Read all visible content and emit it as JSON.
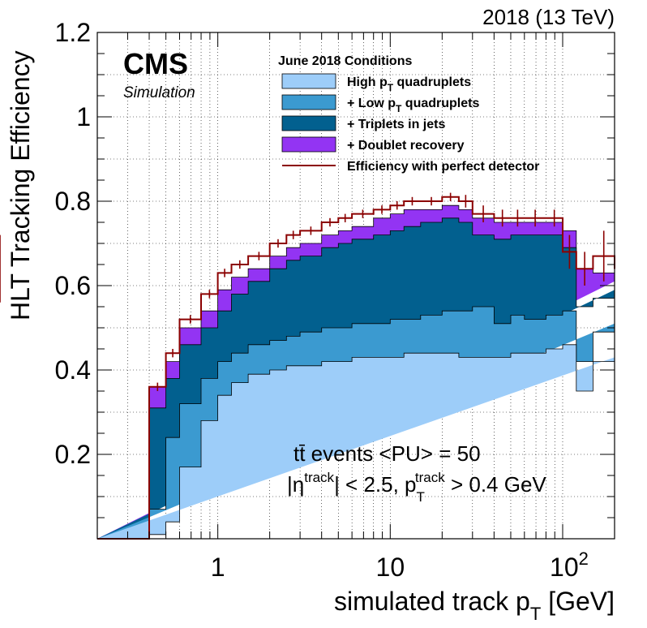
{
  "chart_data": {
    "type": "area",
    "title_right": "2018 (13 TeV)",
    "experiment": "CMS",
    "experiment_sub": "Simulation",
    "xlabel": {
      "main": "simulated track p",
      "sub": "T",
      "unit": " [GeV]"
    },
    "ylabel": "HLT Tracking Efficiency",
    "x_scale": "log",
    "xlim": [
      0.2,
      200
    ],
    "ylim": [
      0,
      1.2
    ],
    "grid": true,
    "legend_position": "top-center",
    "legend_header": "June 2018 Conditions",
    "x_ticks": [
      {
        "value": 1,
        "base": "1",
        "exp": ""
      },
      {
        "value": 10,
        "base": "10",
        "exp": ""
      },
      {
        "value": 100,
        "base": "10",
        "exp": "2"
      }
    ],
    "y_ticks": [
      {
        "value": 0.2,
        "label": "0.2"
      },
      {
        "value": 0.4,
        "label": "0.4"
      },
      {
        "value": 0.6,
        "label": "0.6"
      },
      {
        "value": 0.8,
        "label": "0.8"
      },
      {
        "value": 1.0,
        "label": "1"
      },
      {
        "value": 1.2,
        "label": "1.2"
      }
    ],
    "bin_edges": [
      0.2,
      0.3,
      0.4,
      0.5,
      0.6,
      0.8,
      1.0,
      1.2,
      1.5,
      2.0,
      2.5,
      3.0,
      4.0,
      5.0,
      6.0,
      8.0,
      10.0,
      12.0,
      15.0,
      20.0,
      25.0,
      30.0,
      40.0,
      50.0,
      60.0,
      80.0,
      100.0,
      120.0,
      150.0,
      200.0
    ],
    "series": [
      {
        "label": "High p",
        "label_sub": "T",
        "label_suffix": " quadruplets",
        "color": "#9dcdf9",
        "values": [
          0,
          0,
          0.01,
          0.04,
          0.17,
          0.28,
          0.34,
          0.37,
          0.39,
          0.4,
          0.41,
          0.41,
          0.42,
          0.42,
          0.43,
          0.43,
          0.43,
          0.44,
          0.44,
          0.44,
          0.43,
          0.43,
          0.43,
          0.44,
          0.44,
          0.45,
          0.46,
          0.35,
          0.42,
          0.43
        ]
      },
      {
        "label": "+ Low p",
        "label_sub": "T",
        "label_suffix": " quadruplets",
        "color": "#3b9ad0",
        "values": [
          0,
          0,
          0.07,
          0.24,
          0.32,
          0.38,
          0.42,
          0.44,
          0.46,
          0.47,
          0.48,
          0.49,
          0.5,
          0.5,
          0.51,
          0.51,
          0.52,
          0.52,
          0.53,
          0.54,
          0.54,
          0.55,
          0.51,
          0.53,
          0.52,
          0.53,
          0.54,
          0.42,
          0.49,
          0.51
        ]
      },
      {
        "label": "+ Triplets in jets",
        "label_sub": "",
        "label_suffix": "",
        "color": "#02608f",
        "values": [
          0,
          0,
          0.31,
          0.38,
          0.46,
          0.5,
          0.54,
          0.58,
          0.61,
          0.64,
          0.66,
          0.67,
          0.69,
          0.7,
          0.71,
          0.72,
          0.73,
          0.74,
          0.75,
          0.76,
          0.75,
          0.72,
          0.71,
          0.72,
          0.72,
          0.72,
          0.69,
          0.55,
          0.57,
          0.59
        ]
      },
      {
        "label": "+ Doublet recovery",
        "label_sub": "",
        "label_suffix": "",
        "color": "#9334f3",
        "values": [
          0,
          0,
          0.36,
          0.42,
          0.5,
          0.54,
          0.59,
          0.62,
          0.64,
          0.67,
          0.69,
          0.7,
          0.72,
          0.73,
          0.74,
          0.76,
          0.77,
          0.78,
          0.78,
          0.79,
          0.78,
          0.76,
          0.75,
          0.75,
          0.75,
          0.75,
          0.73,
          0.64,
          0.63,
          0.61
        ]
      }
    ],
    "perfect": {
      "label": "Efficiency with perfect detector",
      "color": "#8b0000",
      "values": [
        0,
        0,
        0.36,
        0.44,
        0.52,
        0.58,
        0.63,
        0.65,
        0.67,
        0.7,
        0.72,
        0.73,
        0.75,
        0.76,
        0.77,
        0.78,
        0.79,
        0.8,
        0.8,
        0.81,
        0.8,
        0.77,
        0.76,
        0.76,
        0.76,
        0.76,
        0.68,
        0.64,
        0.67,
        0.64
      ],
      "errors": [
        0,
        0,
        0.01,
        0.01,
        0.01,
        0.01,
        0.01,
        0.01,
        0.01,
        0.01,
        0.01,
        0.01,
        0.01,
        0.01,
        0.01,
        0.01,
        0.01,
        0.01,
        0.01,
        0.01,
        0.015,
        0.02,
        0.02,
        0.02,
        0.02,
        0.02,
        0.04,
        0.04,
        0.06,
        0.08
      ]
    },
    "annotations": {
      "line1": "tt̄ events <PU> = 50",
      "line2_a": "|η",
      "line2_a_sup": "track",
      "line2_b": "| < 2.5, p",
      "line2_b_sub": "T",
      "line2_b_sup": "track",
      "line2_c": " > 0.4 GeV"
    }
  }
}
